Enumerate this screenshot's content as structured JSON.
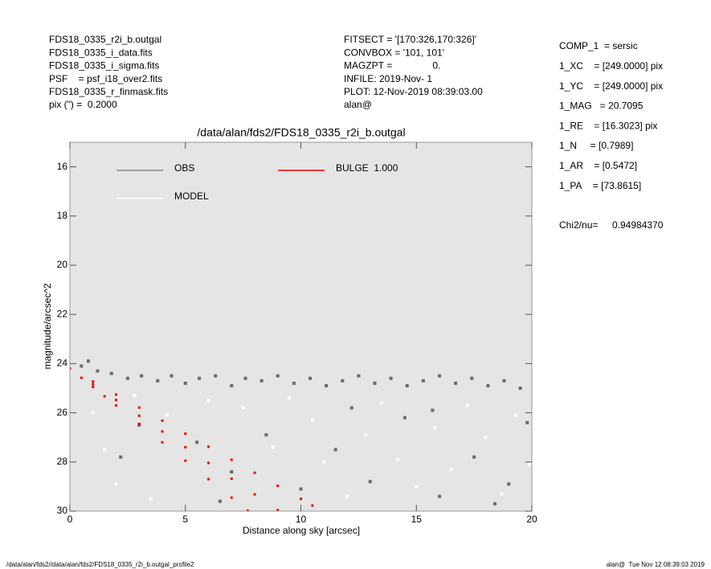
{
  "chart_data": {
    "type": "scatter",
    "title": "/data/alan/fds2/FDS18_0335_r2i_b.outgal",
    "x_label": "Distance along sky [arcsec]",
    "y_label": "magnitude/arcsec^2",
    "xlim": [
      0,
      20
    ],
    "ylim": [
      30,
      15
    ],
    "xticks": [
      0,
      5,
      10,
      15,
      20
    ],
    "yticks": [
      16,
      18,
      20,
      22,
      24,
      26,
      28,
      30
    ],
    "background": "#e5e5e5",
    "series": [
      {
        "name": "OBS",
        "color": "#6a6a6a",
        "x": [
          0.5,
          0.8,
          1.2,
          1.8,
          2.5,
          3.1,
          3.8,
          4.4,
          5.0,
          5.6,
          6.3,
          7.0,
          7.6,
          8.3,
          9.0,
          9.7,
          10.4,
          11.1,
          11.8,
          12.5,
          13.2,
          13.9,
          14.6,
          15.3,
          16.0,
          16.7,
          17.4,
          18.1,
          18.8,
          19.5,
          3.0,
          5.5,
          7.0,
          8.5,
          10.0,
          11.5,
          13.0,
          14.5,
          16.0,
          17.5,
          19.0,
          19.8,
          2.2,
          6.5,
          12.2,
          15.7,
          18.4
        ],
        "y": [
          24.1,
          23.9,
          24.3,
          24.4,
          24.6,
          24.5,
          24.7,
          24.5,
          24.8,
          24.6,
          24.5,
          24.9,
          24.6,
          24.7,
          24.5,
          24.8,
          24.6,
          24.9,
          24.7,
          24.5,
          24.8,
          24.6,
          24.9,
          24.7,
          24.5,
          24.8,
          24.6,
          24.9,
          24.7,
          25.0,
          26.5,
          27.2,
          28.4,
          26.9,
          29.1,
          27.5,
          28.8,
          26.2,
          29.4,
          27.8,
          28.9,
          26.4,
          27.8,
          29.6,
          25.8,
          25.9,
          29.7
        ]
      },
      {
        "name": "MODEL",
        "color": "#ffffff",
        "x": [
          1.0,
          1.5,
          2.0,
          2.8,
          3.5,
          4.2,
          6.0,
          7.5,
          8.8,
          9.5,
          10.5,
          11.0,
          12.0,
          12.8,
          13.5,
          14.2,
          15.0,
          15.8,
          16.5,
          17.2,
          18.0,
          18.7,
          19.3,
          19.9
        ],
        "y": [
          26.0,
          27.5,
          28.9,
          25.3,
          29.5,
          26.1,
          25.5,
          25.8,
          27.4,
          25.4,
          26.3,
          28.0,
          29.4,
          26.9,
          25.6,
          27.9,
          29.0,
          26.6,
          28.3,
          25.7,
          27.0,
          29.3,
          26.1,
          28.1
        ]
      },
      {
        "name": "BULGE  1.000",
        "color": "#ee0000",
        "x": [
          0,
          1,
          2,
          3,
          4,
          5,
          6,
          7,
          8,
          9,
          10,
          10.5,
          0.5,
          1,
          1.5,
          2,
          3,
          4,
          5,
          6,
          7,
          7.7,
          1,
          2,
          3,
          4,
          5,
          6,
          7,
          8,
          9
        ],
        "y": [
          24.2,
          24.73,
          25.26,
          25.79,
          26.32,
          26.85,
          27.38,
          27.91,
          28.44,
          28.97,
          29.5,
          29.77,
          24.58,
          24.95,
          25.33,
          25.7,
          26.45,
          27.2,
          27.95,
          28.7,
          29.45,
          29.98,
          24.84,
          25.48,
          26.12,
          26.76,
          27.4,
          28.04,
          28.68,
          29.32,
          29.96
        ]
      }
    ]
  },
  "header": {
    "left": [
      "FDS18_0335_r2i_b.outgal",
      "FDS18_0335_i_data.fits",
      "FDS18_0335_i_sigma.fits",
      "PSF    = psf_i18_over2.fits",
      "FDS18_0335_r_finmask.fits",
      "pix (\") =  0.2000"
    ],
    "middle": [
      "FITSECT = '[170:326,170:326]'",
      "CONVBOX = '101, 101'",
      "MAGZPT =               0.",
      "INFILE: 2019-Nov- 1",
      "PLOT: 12-Nov-2019 08:39:03.00",
      "alan@"
    ],
    "right": [
      "COMP_1  = sersic",
      "1_XC    = [249.0000] pix",
      "1_YC    = [249.0000] pix",
      "1_MAG   = 20.7095",
      "1_RE    = [16.3023] pix",
      "1_N     = [0.7989]",
      "1_AR    = [0.5472]",
      "1_PA    = [73.8615]"
    ],
    "chi2": [
      "Chi2/nu=",
      "0.94984370"
    ]
  },
  "footer": {
    "left": "/data/alan/fds2//data/alan/fds2/FDS18_0335_r2i_b.outgal_profile2",
    "right": "alan@  Tue Nov 12 08:39:03 2019"
  }
}
